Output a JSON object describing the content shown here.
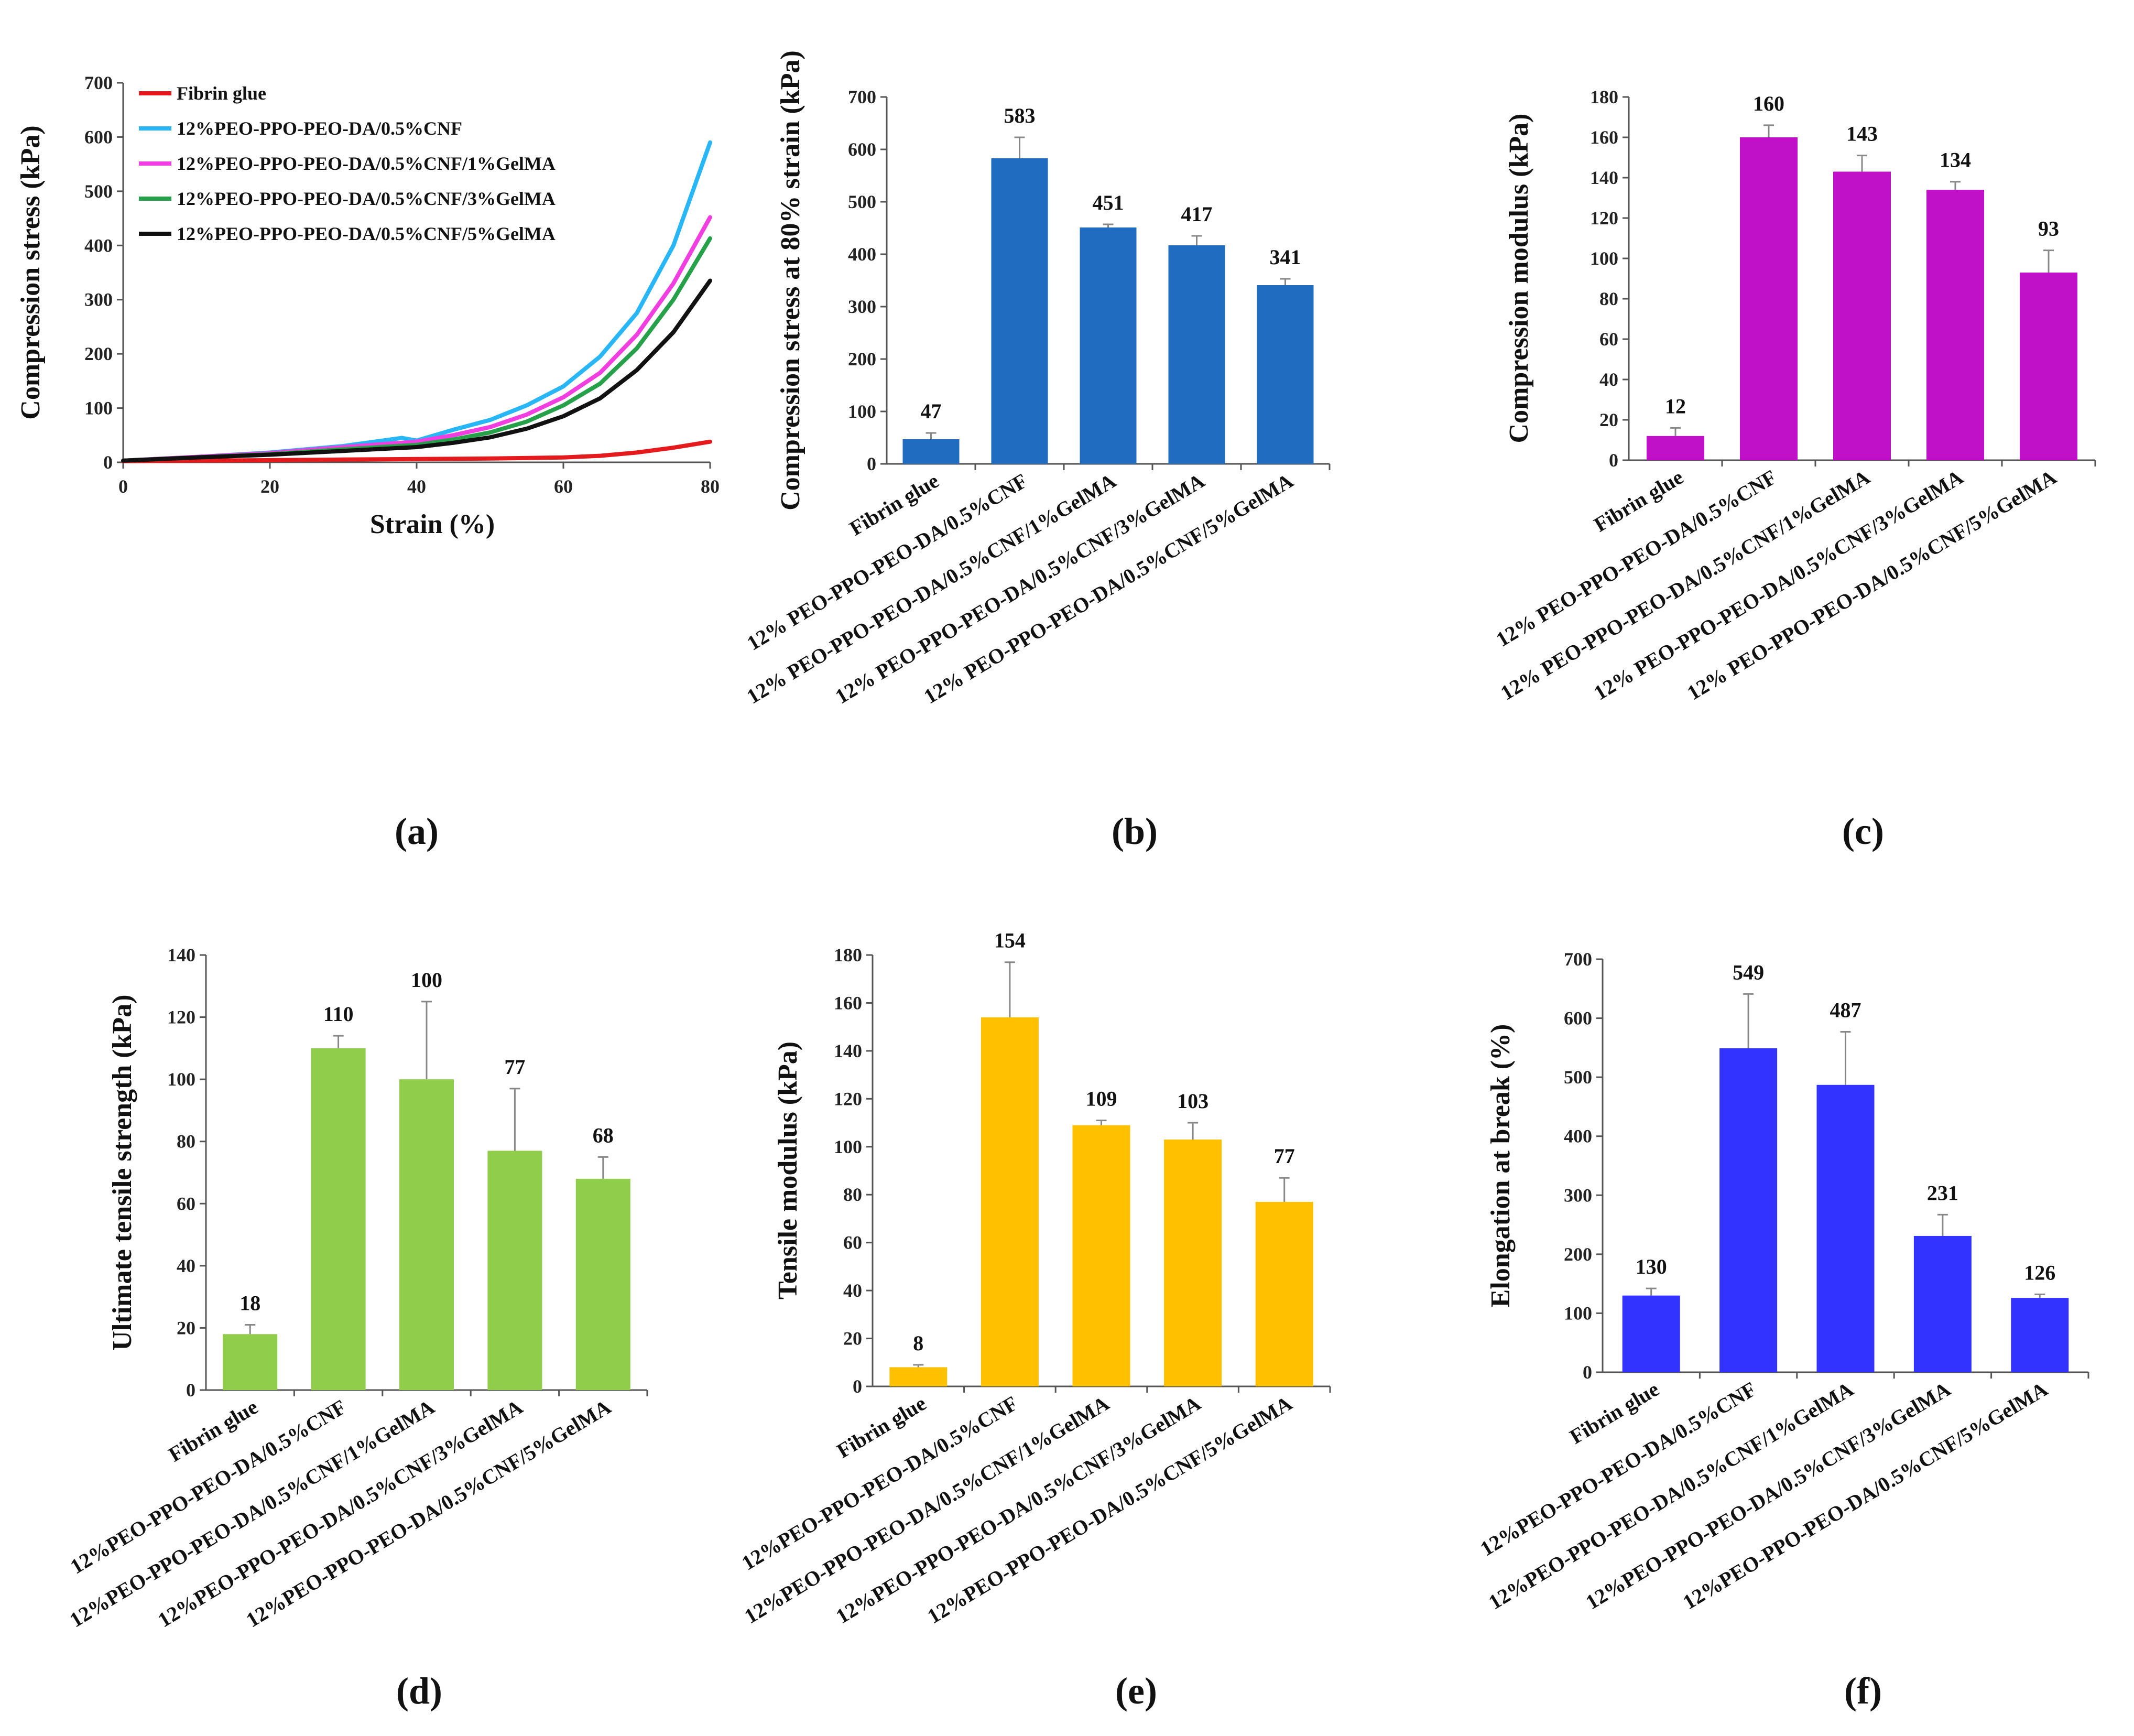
{
  "chart_data": [
    {
      "panel": "(a)",
      "type": "line",
      "title": "",
      "xlabel": "Strain (%)",
      "ylabel": "Compression stress (kPa)",
      "xlim": [
        0,
        80
      ],
      "ylim": [
        0,
        700
      ],
      "xticks": [
        0,
        20,
        40,
        60,
        80
      ],
      "yticks": [
        0,
        100,
        200,
        300,
        400,
        500,
        600,
        700
      ],
      "legend_position": "top-left",
      "series": [
        {
          "name": "Fibrin glue",
          "color": "#e41a1c",
          "x": [
            0,
            10,
            20,
            30,
            40,
            50,
            60,
            65,
            70,
            75,
            80
          ],
          "values": [
            2,
            3,
            4,
            5,
            6,
            7,
            9,
            12,
            18,
            27,
            38
          ]
        },
        {
          "name": "12%PEO-PPO-PEO-DA/0.5%CNF",
          "color": "#29b6f6",
          "x": [
            0,
            10,
            20,
            30,
            38,
            40,
            45,
            50,
            55,
            60,
            65,
            70,
            75,
            80
          ],
          "values": [
            3,
            10,
            18,
            30,
            45,
            40,
            60,
            78,
            105,
            140,
            195,
            275,
            400,
            590
          ]
        },
        {
          "name": "12%PEO-PPO-PEO-DA/0.5%CNF/1%GelMA",
          "color": "#f03ee0",
          "x": [
            0,
            10,
            20,
            30,
            40,
            45,
            50,
            55,
            60,
            65,
            70,
            75,
            80
          ],
          "values": [
            3,
            10,
            17,
            28,
            38,
            50,
            65,
            88,
            120,
            165,
            235,
            330,
            452
          ]
        },
        {
          "name": "12%PEO-PPO-PEO-DA/0.5%CNF/3%GelMA",
          "color": "#27a04a",
          "x": [
            0,
            10,
            20,
            30,
            40,
            45,
            50,
            55,
            60,
            65,
            70,
            75,
            80
          ],
          "values": [
            3,
            9,
            15,
            24,
            32,
            42,
            55,
            75,
            105,
            145,
            210,
            300,
            413
          ]
        },
        {
          "name": "12%PEO-PPO-PEO-DA/0.5%CNF/5%GelMA",
          "color": "#111111",
          "x": [
            0,
            10,
            20,
            30,
            40,
            45,
            50,
            55,
            60,
            65,
            70,
            75,
            80
          ],
          "values": [
            3,
            9,
            14,
            21,
            28,
            36,
            46,
            62,
            85,
            118,
            170,
            240,
            335
          ]
        }
      ]
    },
    {
      "panel": "(b)",
      "type": "bar",
      "title": "",
      "xlabel": "",
      "ylabel": "Compression stress at 80% strain (kPa)",
      "ylim": [
        0,
        700
      ],
      "yticks": [
        0,
        100,
        200,
        300,
        400,
        500,
        600,
        700
      ],
      "color": "#1f6cc1",
      "categories": [
        "Fibrin glue",
        "12% PEO-PPO-PEO-DA/0.5%CNF",
        "12% PEO-PPO-PEO-DA/0.5%CNF/1%GelMA",
        "12% PEO-PPO-PEO-DA/0.5%CNF/3%GelMA",
        "12% PEO-PPO-PEO-DA/0.5%CNF/5%GelMA"
      ],
      "values": [
        47,
        583,
        451,
        417,
        341
      ],
      "errors": [
        12,
        40,
        6,
        18,
        12
      ],
      "labels": [
        "47",
        "583",
        "451",
        "417",
        "341"
      ]
    },
    {
      "panel": "(c)",
      "type": "bar",
      "title": "",
      "xlabel": "",
      "ylabel": "Compression modulus (kPa)",
      "ylim": [
        0,
        180
      ],
      "yticks": [
        0,
        20,
        40,
        60,
        80,
        100,
        120,
        140,
        160,
        180
      ],
      "color": "#c010c8",
      "categories": [
        "Fibrin glue",
        "12% PEO-PPO-PEO-DA/0.5%CNF",
        "12% PEO-PPO-PEO-DA/0.5%CNF/1%GelMA",
        "12% PEO-PPO-PEO-DA/0.5%CNF/3%GelMA",
        "12% PEO-PPO-PEO-DA/0.5%CNF/5%GelMA"
      ],
      "values": [
        12,
        160,
        143,
        134,
        93
      ],
      "errors": [
        4,
        6,
        8,
        4,
        11
      ],
      "labels": [
        "12",
        "160",
        "143",
        "134",
        "93"
      ]
    },
    {
      "panel": "(d)",
      "type": "bar",
      "title": "",
      "xlabel": "",
      "ylabel": "Ultimate tensile strength (kPa)",
      "ylim": [
        0,
        140
      ],
      "yticks": [
        0,
        20,
        40,
        60,
        80,
        100,
        120,
        140
      ],
      "color": "#8fcd4a",
      "categories": [
        "Fibrin glue",
        "12%PEO-PPO-PEO-DA/0.5%CNF",
        "12%PEO-PPO-PEO-DA/0.5%CNF/1%GelMA",
        "12%PEO-PPO-PEO-DA/0.5%CNF/3%GelMA",
        "12%PEO-PPO-PEO-DA/0.5%CNF/5%GelMA"
      ],
      "values": [
        18,
        110,
        100,
        77,
        68
      ],
      "errors": [
        3,
        4,
        25,
        20,
        7
      ],
      "labels": [
        "18",
        "110",
        "100",
        "77",
        "68"
      ]
    },
    {
      "panel": "(e)",
      "type": "bar",
      "title": "",
      "xlabel": "",
      "ylabel": "Tensile modulus (kPa)",
      "ylim": [
        0,
        180
      ],
      "yticks": [
        0,
        20,
        40,
        60,
        80,
        100,
        120,
        140,
        160,
        180
      ],
      "color": "#ffc000",
      "categories": [
        "Fibrin glue",
        "12%PEO-PPO-PEO-DA/0.5%CNF",
        "12%PEO-PPO-PEO-DA/0.5%CNF/1%GelMA",
        "12%PEO-PPO-PEO-DA/0.5%CNF/3%GelMA",
        "12%PEO-PPO-PEO-DA/0.5%CNF/5%GelMA"
      ],
      "values": [
        8,
        154,
        109,
        103,
        77
      ],
      "errors": [
        1,
        23,
        2,
        7,
        10
      ],
      "labels": [
        "8",
        "154",
        "109",
        "103",
        "77"
      ]
    },
    {
      "panel": "(f)",
      "type": "bar",
      "title": "",
      "xlabel": "",
      "ylabel": "Elongation at break (%)",
      "ylim": [
        0,
        700
      ],
      "yticks": [
        0,
        100,
        200,
        300,
        400,
        500,
        600,
        700
      ],
      "color": "#3333ff",
      "categories": [
        "Fibrin glue",
        "12%PEO-PPO-PEO-DA/0.5%CNF",
        "12%PEO-PPO-PEO-DA/0.5%CNF/1%GelMA",
        "12%PEO-PPO-PEO-DA/0.5%CNF/3%GelMA",
        "12%PEO-PPO-PEO-DA/0.5%CNF/5%GelMA"
      ],
      "values": [
        130,
        549,
        487,
        231,
        126
      ],
      "errors": [
        12,
        92,
        90,
        36,
        6
      ],
      "labels": [
        "130",
        "549",
        "487",
        "231",
        "126"
      ]
    }
  ]
}
